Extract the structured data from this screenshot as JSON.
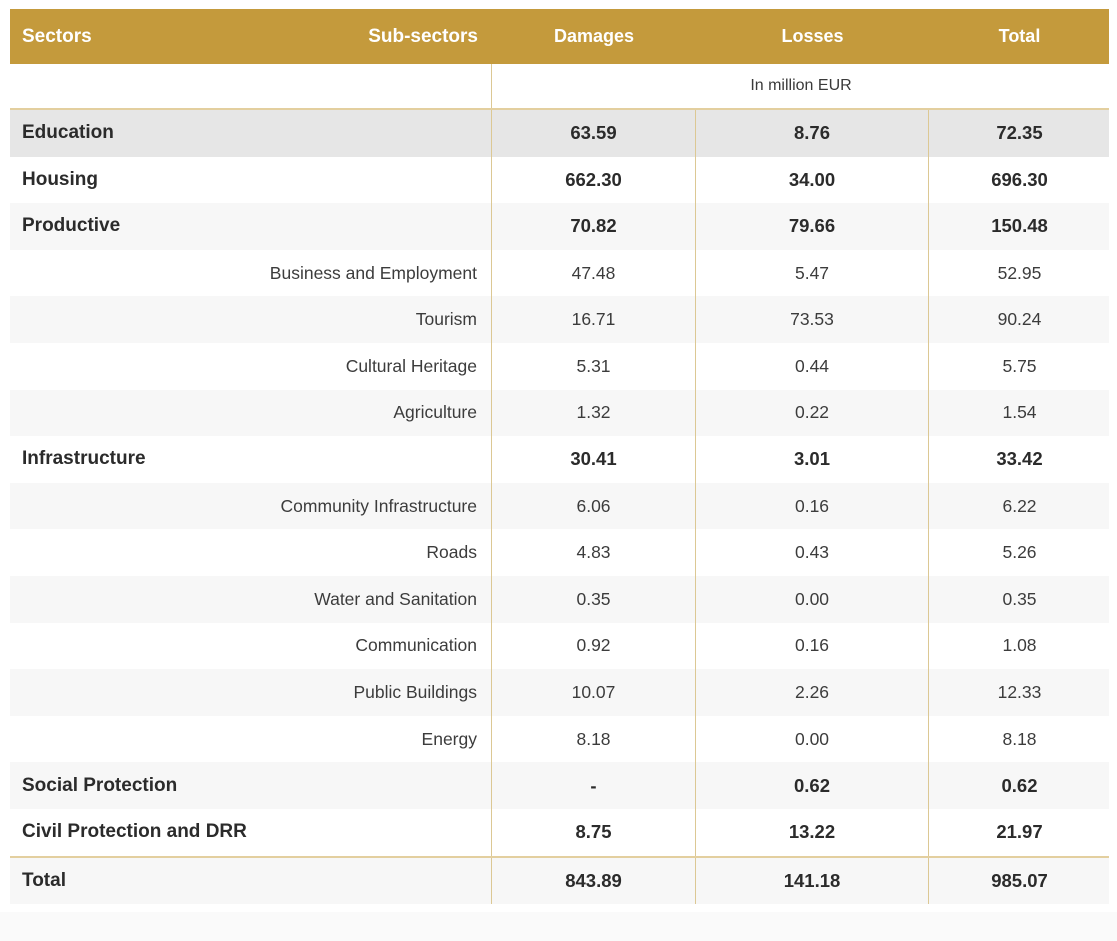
{
  "header": {
    "sectors": "Sectors",
    "sub_sectors": "Sub-sectors",
    "damages": "Damages",
    "losses": "Losses",
    "total": "Total"
  },
  "unit": "In million EUR",
  "rows": [
    {
      "type": "main",
      "sector": "Education",
      "damages": "63.59",
      "losses": "8.76",
      "total": "72.35"
    },
    {
      "type": "main",
      "sector": "Housing",
      "damages": "662.30",
      "losses": "34.00",
      "total": "696.30"
    },
    {
      "type": "main",
      "sector": "Productive",
      "damages": "70.82",
      "losses": "79.66",
      "total": "150.48"
    },
    {
      "type": "sub",
      "sector": "Business and Employment",
      "damages": "47.48",
      "losses": "5.47",
      "total": "52.95"
    },
    {
      "type": "sub",
      "sector": "Tourism",
      "damages": "16.71",
      "losses": "73.53",
      "total": "90.24"
    },
    {
      "type": "sub",
      "sector": "Cultural Heritage",
      "damages": "5.31",
      "losses": "0.44",
      "total": "5.75"
    },
    {
      "type": "sub",
      "sector": "Agriculture",
      "damages": "1.32",
      "losses": "0.22",
      "total": "1.54"
    },
    {
      "type": "main",
      "sector": "Infrastructure",
      "damages": "30.41",
      "losses": "3.01",
      "total": "33.42"
    },
    {
      "type": "sub",
      "sector": "Community Infrastructure",
      "damages": "6.06",
      "losses": "0.16",
      "total": "6.22"
    },
    {
      "type": "sub",
      "sector": "Roads",
      "damages": "4.83",
      "losses": "0.43",
      "total": "5.26"
    },
    {
      "type": "sub",
      "sector": "Water and Sanitation",
      "damages": "0.35",
      "losses": "0.00",
      "total": "0.35"
    },
    {
      "type": "sub",
      "sector": "Communication",
      "damages": "0.92",
      "losses": "0.16",
      "total": "1.08"
    },
    {
      "type": "sub",
      "sector": "Public Buildings",
      "damages": "10.07",
      "losses": "2.26",
      "total": "12.33"
    },
    {
      "type": "sub",
      "sector": "Energy",
      "damages": "8.18",
      "losses": "0.00",
      "total": "8.18"
    },
    {
      "type": "main",
      "sector": "Social Protection",
      "damages": "-",
      "losses": "0.62",
      "total": "0.62"
    },
    {
      "type": "main",
      "sector": "Civil Protection and DRR",
      "damages": "8.75",
      "losses": "13.22",
      "total": "21.97"
    },
    {
      "type": "total",
      "sector": "Total",
      "damages": "843.89",
      "losses": "141.18",
      "total": "985.07"
    }
  ],
  "colors": {
    "header_bg": "#c49a3c",
    "header_text": "#ffffff",
    "divider": "#dcc894",
    "row_shade": "#f7f7f7",
    "highlight_row": "#e6e6e6"
  }
}
